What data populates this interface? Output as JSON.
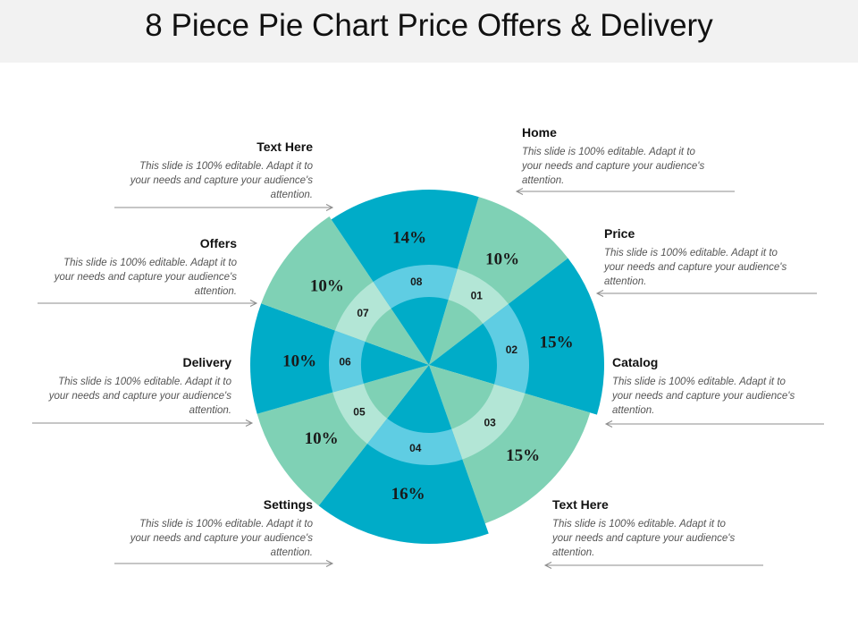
{
  "slide": {
    "title": "8 Piece Pie Chart Price Offers & Delivery"
  },
  "colors": {
    "teal": "#00acc8",
    "mint": "#7fd1b5",
    "ring_teal": "#5fcde3",
    "ring_mint": "#b3e6d6"
  },
  "chart_data": {
    "type": "pie",
    "segments": [
      {
        "id": "01",
        "label": "Price",
        "value": 10,
        "value_label": "10%",
        "color": "#7fd1b5"
      },
      {
        "id": "02",
        "label": "Catalog",
        "value": 15,
        "value_label": "15%",
        "color": "#00acc8"
      },
      {
        "id": "03",
        "label": "Text Here",
        "value": 15,
        "value_label": "15%",
        "color": "#7fd1b5"
      },
      {
        "id": "04",
        "label": "Settings",
        "value": 16,
        "value_label": "16%",
        "color": "#00acc8"
      },
      {
        "id": "05",
        "label": "Delivery",
        "value": 10,
        "value_label": "10%",
        "color": "#7fd1b5"
      },
      {
        "id": "06",
        "label": "Offers",
        "value": 10,
        "value_label": "10%",
        "color": "#00acc8"
      },
      {
        "id": "07",
        "label": "Text Here",
        "value": 10,
        "value_label": "10%",
        "color": "#7fd1b5"
      },
      {
        "id": "08",
        "label": "Home",
        "value": 14,
        "value_label": "14%",
        "color": "#00acc8"
      }
    ]
  },
  "callouts": {
    "home": {
      "title": "Home",
      "text": "This slide is 100% editable. Adapt it to your needs and capture your audience's attention."
    },
    "price": {
      "title": "Price",
      "text": "This slide is 100% editable. Adapt it to your needs and capture your audience's attention."
    },
    "catalog": {
      "title": "Catalog",
      "text": "This slide is 100% editable. Adapt it to your needs and capture your audience's attention."
    },
    "text_here_right": {
      "title": "Text Here",
      "text": "This slide is 100% editable. Adapt it to your needs and capture your audience's attention."
    },
    "text_here_left": {
      "title": "Text Here",
      "text": "This slide is 100% editable. Adapt it to your needs and capture your audience's attention."
    },
    "offers": {
      "title": "Offers",
      "text": "This slide is 100% editable. Adapt it to your needs and capture your audience's attention."
    },
    "delivery": {
      "title": "Delivery",
      "text": "This slide is 100% editable. Adapt it to your needs and capture your audience's attention."
    },
    "settings": {
      "title": "Settings",
      "text": "This slide is 100% editable. Adapt it to your needs and capture your audience's attention."
    }
  }
}
